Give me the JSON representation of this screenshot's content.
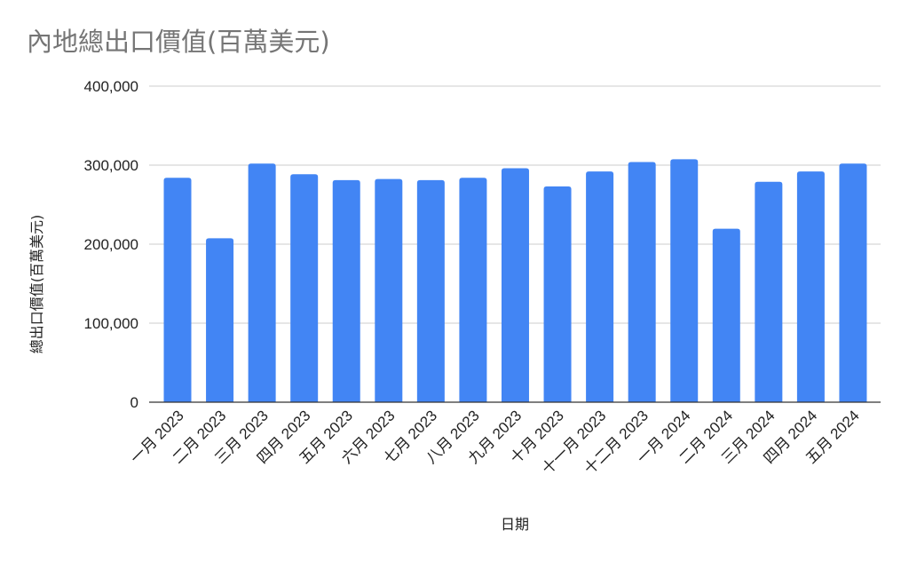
{
  "chart_data": {
    "type": "bar",
    "title": "內地總出口價值(百萬美元)",
    "xlabel": "日期",
    "ylabel": "總出口價值(百萬美元)",
    "ylim": [
      0,
      400000
    ],
    "yticks": [
      "0",
      "100,000",
      "200,000",
      "300,000",
      "400,000"
    ],
    "ytick_values": [
      0,
      100000,
      200000,
      300000,
      400000
    ],
    "grid": true,
    "bar_color": "#4285f4",
    "categories": [
      "一月 2023",
      "二月 2023",
      "三月 2023",
      "四月 2023",
      "五月 2023",
      "六月 2023",
      "七月 2023",
      "八月 2023",
      "九月 2023",
      "十月 2023",
      "十一月 2023",
      "十二月 2023",
      "一月 2024",
      "二月 2024",
      "三月 2024",
      "四月 2024",
      "五月 2024"
    ],
    "values": [
      284000,
      207500,
      302000,
      288500,
      281000,
      282500,
      281000,
      284000,
      296000,
      273000,
      292000,
      304000,
      307500,
      219500,
      279000,
      292000,
      302000
    ]
  }
}
